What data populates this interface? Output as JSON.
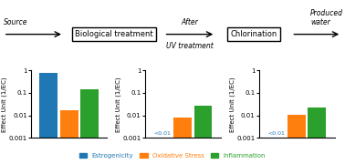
{
  "chart_data": [
    {
      "type": "bar",
      "categories": [
        null
      ],
      "series": [
        {
          "name": "Estrogenicity",
          "values": [
            0.82
          ]
        },
        {
          "name": "Oxidative Stress",
          "values": [
            0.017
          ]
        },
        {
          "name": "Inflammation",
          "values": [
            0.15
          ]
        }
      ],
      "ylabel": "Effect Unit (1/EC)",
      "log": "y",
      "ylim": [
        0.001,
        1
      ],
      "yticks": [
        0.001,
        0.01,
        0.1,
        1
      ],
      "legend": "lower center"
    },
    {
      "type": "bar",
      "categories": [
        null
      ],
      "series": [
        {
          "name": "Estrogenicity",
          "values": [
            null
          ]
        },
        {
          "name": "Oxidative Stress",
          "values": [
            0.008
          ]
        },
        {
          "name": "Inflammation",
          "values": [
            0.026
          ]
        }
      ],
      "ylabel": "Effect Unit (1/EC)",
      "log": "y",
      "ylim": [
        0.001,
        1
      ],
      "yticks": [
        0.001,
        0.01,
        0.1,
        1
      ],
      "annotations": [
        {
          "text": "<0.01",
          "series": "Estrogenicity"
        }
      ]
    },
    {
      "type": "bar",
      "categories": [
        null
      ],
      "series": [
        {
          "name": "Estrogenicity",
          "values": [
            null
          ]
        },
        {
          "name": "Oxidative Stress",
          "values": [
            0.011
          ]
        },
        {
          "name": "Inflammation",
          "values": [
            0.022
          ]
        }
      ],
      "ylabel": "Effect Unit (1/EC)",
      "log": "y",
      "ylim": [
        0.001,
        1
      ],
      "yticks": [
        0.001,
        0.01,
        0.1,
        1
      ],
      "annotations": [
        {
          "text": "<0.01",
          "series": "Estrogenicity"
        }
      ]
    }
  ],
  "annotations": [
    {
      "text": "Source"
    },
    {
      "text": "Biological treatment"
    },
    {
      "text": "After"
    },
    {
      "text": "UV treatment"
    },
    {
      "text": "Chlorination"
    },
    {
      "text": "Produced\nwater"
    }
  ]
}
